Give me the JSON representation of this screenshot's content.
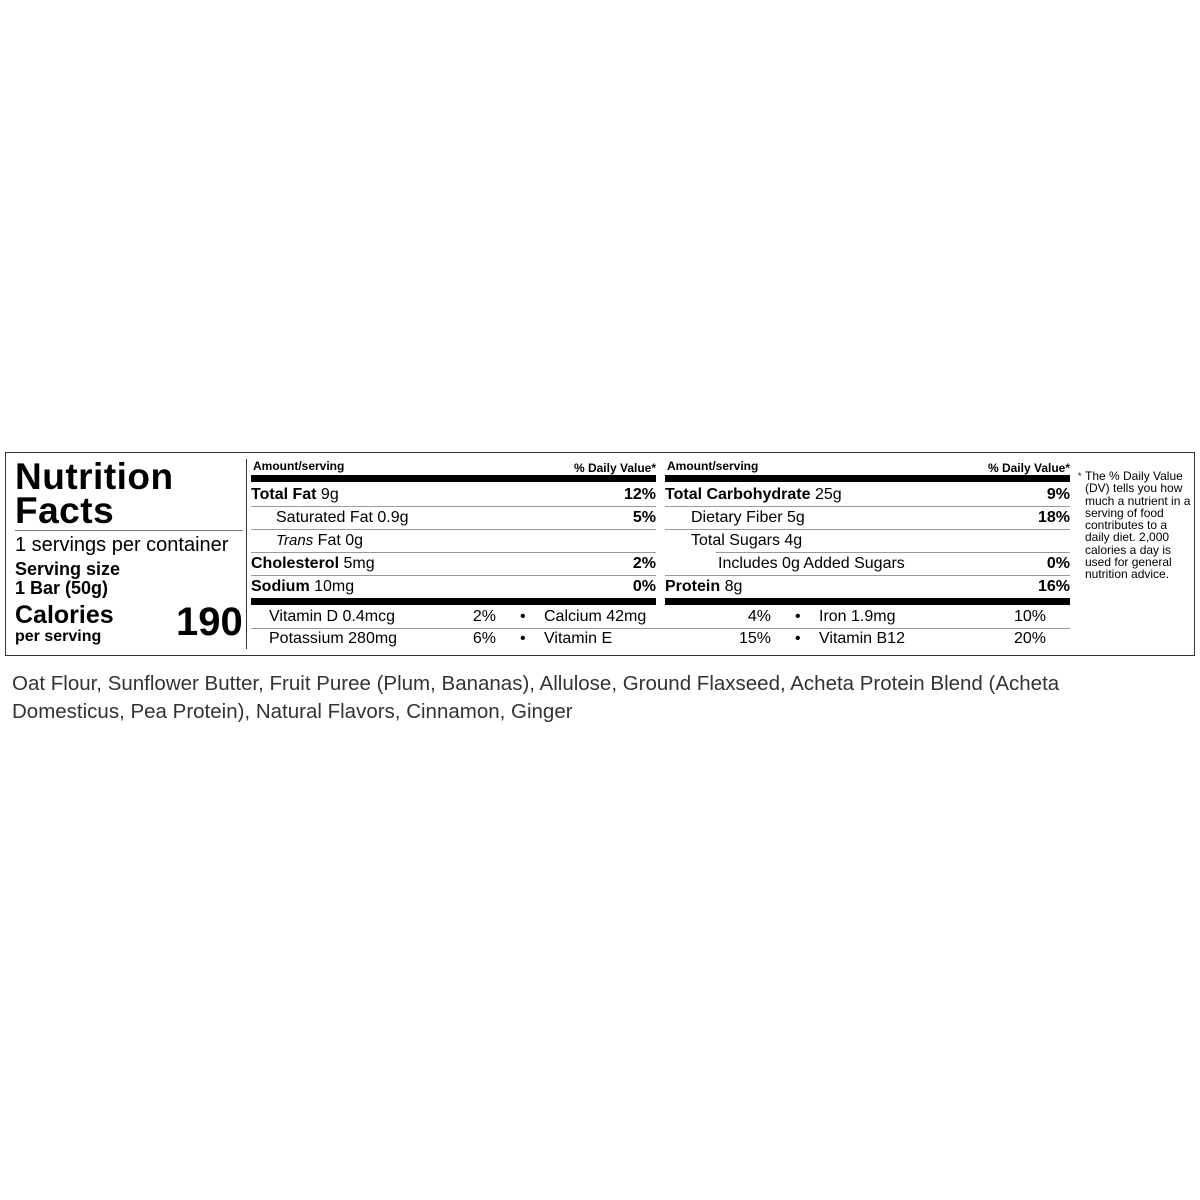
{
  "label": {
    "title_line1": "Nutrition",
    "title_line2": "Facts",
    "servings_per_container": "1 servings per container",
    "serving_size_label": "Serving size",
    "serving_size_value": "1 Bar (50g)",
    "calories_label": "Calories",
    "calories_sub": "per serving",
    "calories_value": "190",
    "amount_header": "Amount/serving",
    "dv_header": "% Daily Value*",
    "left_rows": [
      {
        "name": "Total Fat",
        "amount": " 9g",
        "dv": "12%"
      },
      {
        "name": "Saturated Fat 0.9g",
        "amount": "",
        "dv": "5%"
      },
      {
        "name": "Trans",
        "amount": " Fat 0g",
        "dv": ""
      },
      {
        "name": "Cholesterol",
        "amount": " 5mg",
        "dv": "2%"
      },
      {
        "name": "Sodium",
        "amount": " 10mg",
        "dv": "0%"
      }
    ],
    "right_rows": [
      {
        "name": "Total Carbohydrate",
        "amount": " 25g",
        "dv": "9%"
      },
      {
        "name": "Dietary Fiber 5g",
        "amount": "",
        "dv": "18%"
      },
      {
        "name": "Total Sugars 4g",
        "amount": "",
        "dv": ""
      },
      {
        "name": "Includes 0g Added Sugars",
        "amount": "",
        "dv": "0%"
      },
      {
        "name": "Protein",
        "amount": " 8g",
        "dv": "16%"
      }
    ],
    "vitamins": [
      [
        {
          "name": "Vitamin D 0.4mcg",
          "dv": "2%"
        },
        {
          "name": "Calcium 42mg",
          "dv": "4%"
        },
        {
          "name": "Iron 1.9mg",
          "dv": "10%"
        }
      ],
      [
        {
          "name": "Potassium 280mg",
          "dv": "6%"
        },
        {
          "name": "Vitamin E",
          "dv": "15%"
        },
        {
          "name": "Vitamin B12",
          "dv": "20%"
        }
      ]
    ],
    "bullet": "•",
    "footnote_star": "*",
    "footnote": "The % Daily Value (DV) tells you how much a nutrient in a serving of food contributes to a daily diet. 2,000 calories a day is used for general nutrition advice."
  },
  "ingredients": "Oat Flour, Sunflower Butter, Fruit Puree (Plum, Bananas), Allulose, Ground Flaxseed, Acheta Protein Blend (Acheta Domesticus, Pea Protein), Natural Flavors, Cinnamon, Ginger"
}
